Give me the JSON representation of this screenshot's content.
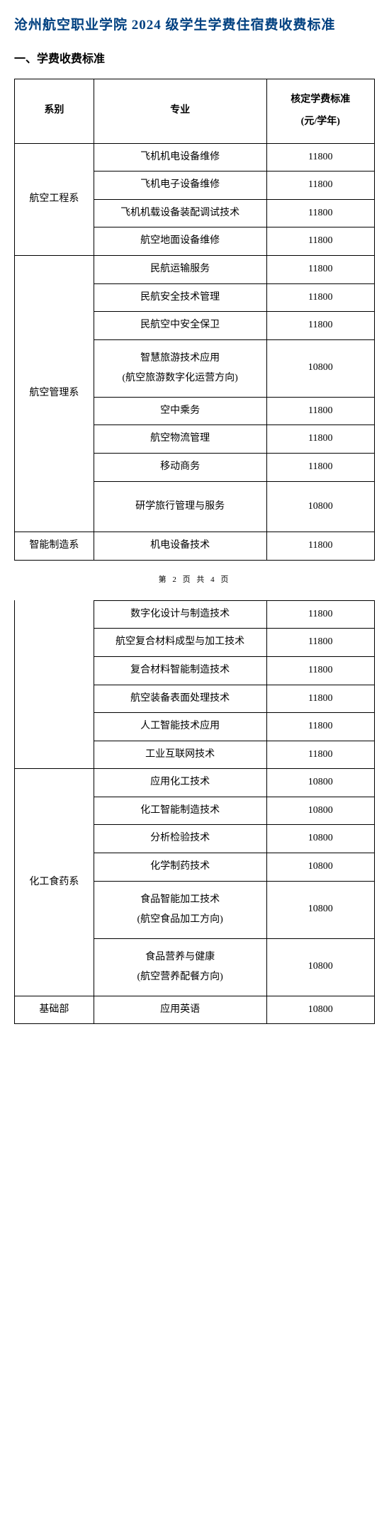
{
  "title": "沧州航空职业学院 2024 级学生学费住宿费收费标准",
  "section1": "一、学费收费标准",
  "headers": {
    "dept": "系别",
    "major": "专业",
    "fee_l1": "核定学费标准",
    "fee_l2": "(元/学年)"
  },
  "footer": "第 2 页 共 4 页",
  "depts": {
    "d1": "航空工程系",
    "d2": "航空管理系",
    "d3": "智能制造系",
    "d4": "化工食药系",
    "d5": "基础部"
  },
  "majors": {
    "m1": "飞机机电设备维修",
    "m2": "飞机电子设备维修",
    "m3": "飞机机载设备装配调试技术",
    "m4": "航空地面设备维修",
    "m5": "民航运输服务",
    "m6": "民航安全技术管理",
    "m7": "民航空中安全保卫",
    "m8a": "智慧旅游技术应用",
    "m8b": "(航空旅游数字化运营方向)",
    "m9": "空中乘务",
    "m10": "航空物流管理",
    "m11": "移动商务",
    "m12": "研学旅行管理与服务",
    "m13": "机电设备技术",
    "m14": "数字化设计与制造技术",
    "m15": "航空复合材料成型与加工技术",
    "m16": "复合材料智能制造技术",
    "m17": "航空装备表面处理技术",
    "m18": "人工智能技术应用",
    "m19": "工业互联网技术",
    "m20": "应用化工技术",
    "m21": "化工智能制造技术",
    "m22": "分析检验技术",
    "m23": "化学制药技术",
    "m24a": "食品智能加工技术",
    "m24b": "(航空食品加工方向)",
    "m25a": "食品营养与健康",
    "m25b": "(航空营养配餐方向)",
    "m26": "应用英语"
  },
  "fees": {
    "f1": "11800",
    "f2": "11800",
    "f3": "11800",
    "f4": "11800",
    "f5": "11800",
    "f6": "11800",
    "f7": "11800",
    "f8": "10800",
    "f9": "11800",
    "f10": "11800",
    "f11": "11800",
    "f12": "10800",
    "f13": "11800",
    "f14": "11800",
    "f15": "11800",
    "f16": "11800",
    "f17": "11800",
    "f18": "11800",
    "f19": "11800",
    "f20": "10800",
    "f21": "10800",
    "f22": "10800",
    "f23": "10800",
    "f24": "10800",
    "f25": "10800",
    "f26": "10800"
  },
  "style": {
    "title_color": "#004080",
    "border_color": "#000000",
    "background": "#ffffff",
    "font_family": "SimSun",
    "title_fontsize": 19,
    "body_fontsize": 14,
    "col_widths_pct": [
      22,
      48,
      30
    ]
  }
}
